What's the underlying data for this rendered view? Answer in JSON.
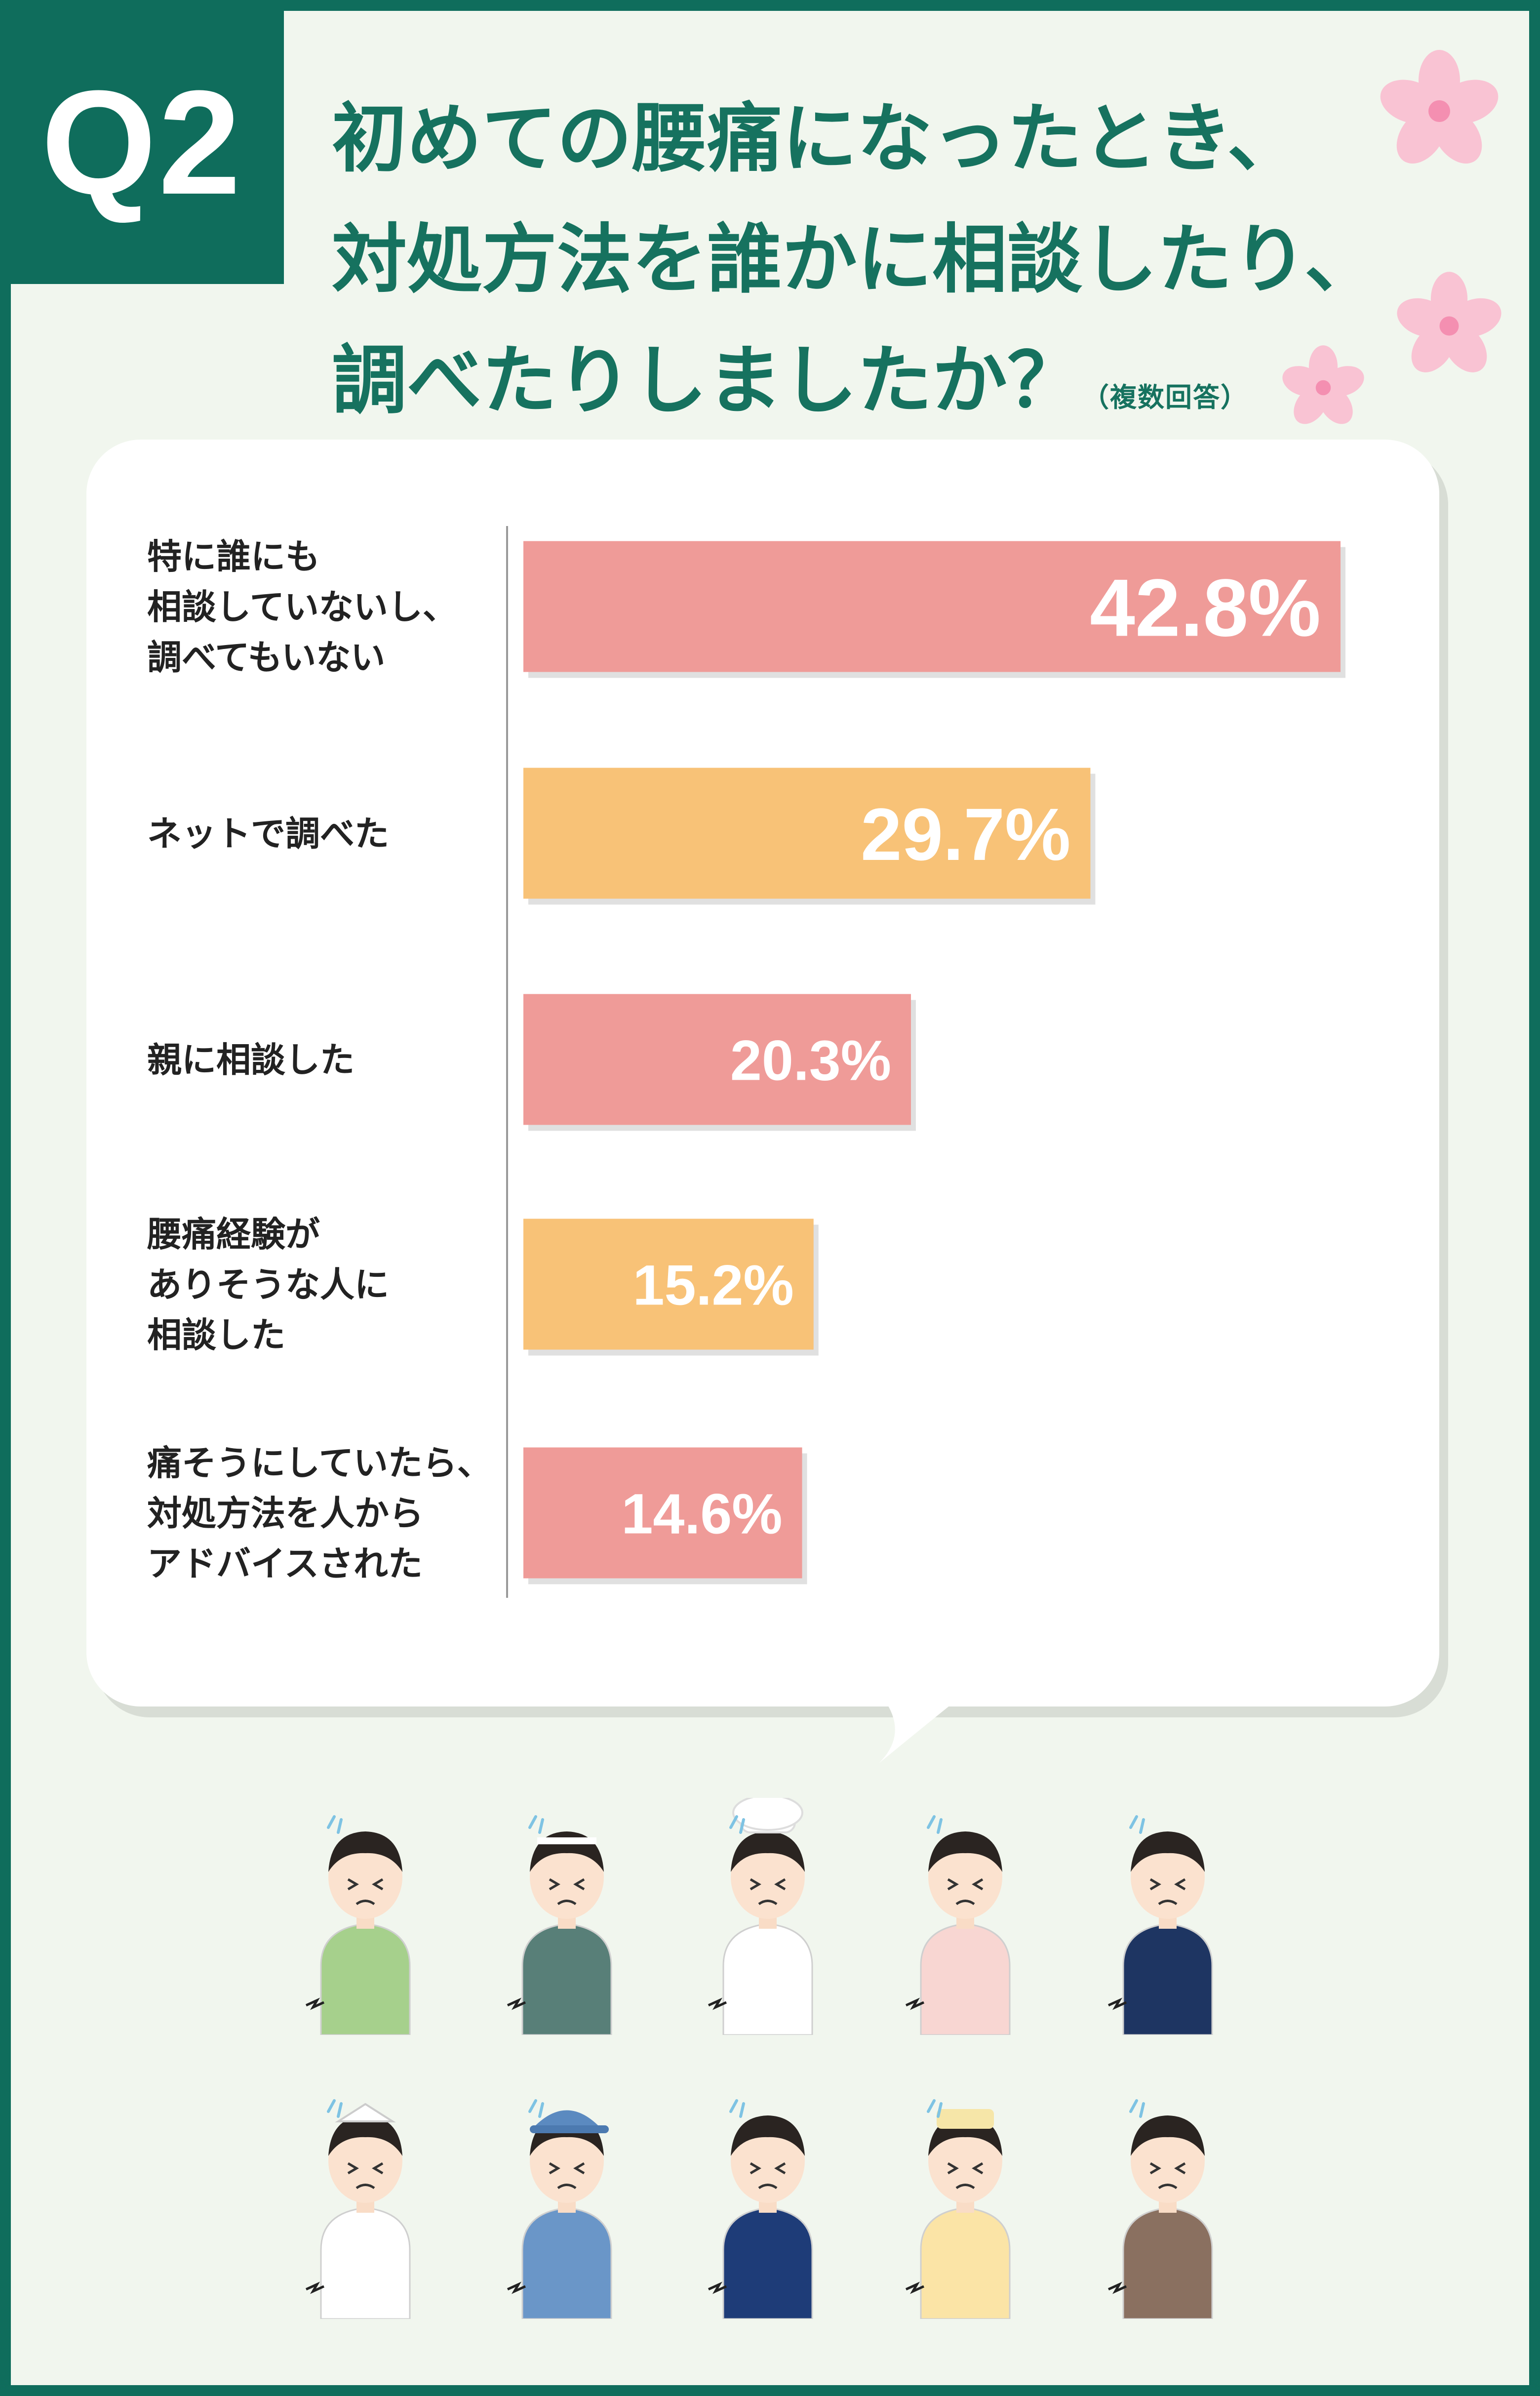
{
  "header": {
    "badge": "Q2",
    "title_lines": [
      "初めての腰痛になったとき、",
      "対処方法を誰かに相談したり、",
      "調べたりしましたか？"
    ],
    "title_note": "（複数回答）"
  },
  "colors": {
    "brand_green": "#0f6d5c",
    "title_green": "#16725f",
    "bar_pink": "#ef9b98",
    "bar_orange": "#f8c277",
    "background": "#f1f6ee",
    "flower_pink": "#f9c3d3"
  },
  "chart_data": {
    "type": "bar",
    "orientation": "horizontal",
    "unit": "%",
    "categories": [
      "特に誰にも\n相談していないし、\n調べてもいない",
      "ネットで調べた",
      "親に相談した",
      "腰痛経験が\nありそうな人に\n相談した",
      "痛そうにしていたら、\n対処方法を人から\nアドバイスされた"
    ],
    "values": [
      42.8,
      29.7,
      20.3,
      15.2,
      14.6
    ],
    "value_labels": [
      "42.8%",
      "29.7%",
      "20.3%",
      "15.2%",
      "14.6%"
    ],
    "bar_colors": [
      "#ef9b98",
      "#f8c277",
      "#ef9b98",
      "#f8c277",
      "#ef9b98"
    ],
    "xlim": [
      0,
      42.8
    ],
    "grid": false,
    "legend": "none"
  },
  "illustrations": {
    "icon": "worried-worker-with-back-pain-icon",
    "row1_outfit_colors": [
      "#a6d08c",
      "#587f78",
      "#ffffff",
      "#f8d6d2",
      "#1e3562"
    ],
    "row2_outfit_colors": [
      "#ffffff",
      "#6a96c8",
      "#1e3c78",
      "#fbe4a6",
      "#8a7060"
    ]
  }
}
